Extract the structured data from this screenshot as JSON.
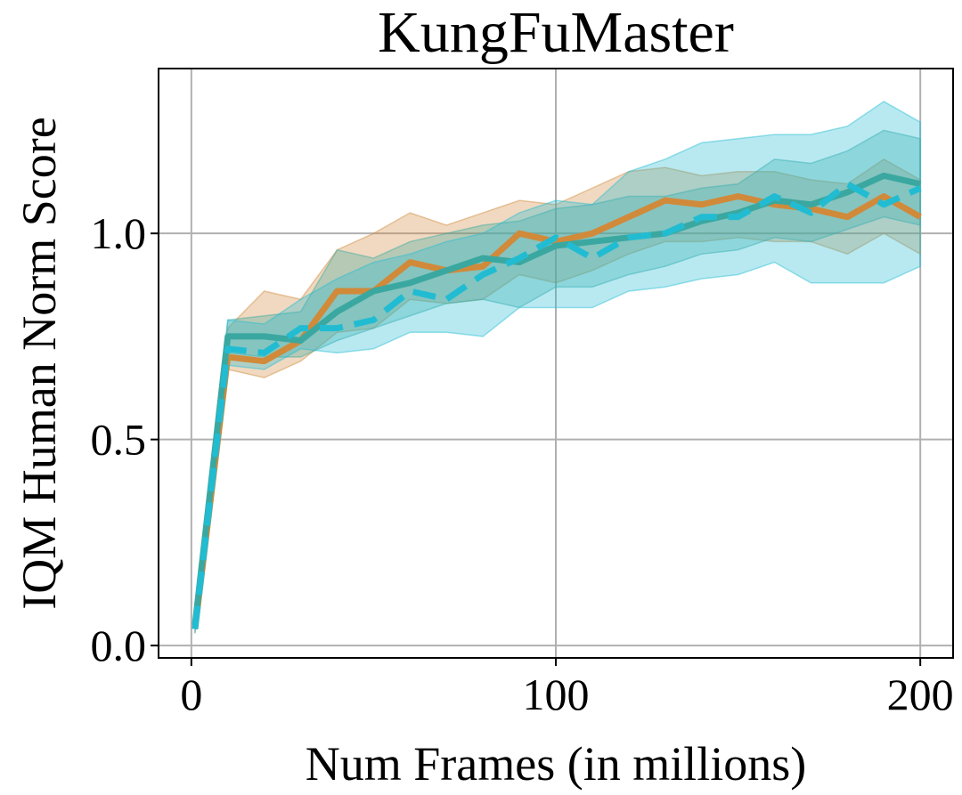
{
  "chart_data": {
    "type": "line",
    "title": "KungFuMaster",
    "xlabel": "Num Frames (in millions)",
    "ylabel": "IQM Human Norm Score",
    "xlim": [
      -9,
      209
    ],
    "ylim": [
      -0.03,
      1.4
    ],
    "xticks": [
      0,
      100,
      200
    ],
    "xtick_labels": [
      "0",
      "100",
      "200"
    ],
    "yticks": [
      0.0,
      0.5,
      1.0
    ],
    "ytick_labels": [
      "0.0",
      "0.5",
      "1.0"
    ],
    "grid": true,
    "legend": "none",
    "x": [
      1,
      10,
      20,
      30,
      40,
      50,
      60,
      70,
      80,
      90,
      100,
      110,
      120,
      130,
      140,
      150,
      160,
      170,
      180,
      190,
      200
    ],
    "series": [
      {
        "color": "#d08a3a",
        "line_style": "solid",
        "values": [
          0.04,
          0.7,
          0.69,
          0.74,
          0.86,
          0.86,
          0.93,
          0.91,
          0.92,
          1.0,
          0.98,
          1.0,
          1.04,
          1.08,
          1.07,
          1.09,
          1.07,
          1.06,
          1.04,
          1.09,
          1.04
        ],
        "lower": [
          0.03,
          0.67,
          0.65,
          0.69,
          0.76,
          0.77,
          0.84,
          0.83,
          0.84,
          0.9,
          0.88,
          0.91,
          0.95,
          0.98,
          0.98,
          0.99,
          0.98,
          0.98,
          0.95,
          1.0,
          0.95
        ],
        "upper": [
          0.05,
          0.77,
          0.86,
          0.84,
          0.96,
          1.0,
          1.05,
          1.02,
          1.05,
          1.08,
          1.07,
          1.11,
          1.15,
          1.16,
          1.14,
          1.15,
          1.15,
          1.13,
          1.12,
          1.18,
          1.13
        ]
      },
      {
        "color": "#3aa8a0",
        "line_style": "solid",
        "values": [
          0.05,
          0.75,
          0.75,
          0.74,
          0.81,
          0.86,
          0.88,
          0.91,
          0.94,
          0.93,
          0.97,
          0.98,
          0.99,
          1.0,
          1.03,
          1.05,
          1.08,
          1.07,
          1.1,
          1.14,
          1.12
        ],
        "lower": [
          0.04,
          0.71,
          0.7,
          0.7,
          0.74,
          0.77,
          0.8,
          0.83,
          0.84,
          0.82,
          0.87,
          0.87,
          0.9,
          0.92,
          0.95,
          0.96,
          0.99,
          0.98,
          1.01,
          1.04,
          1.02
        ],
        "upper": [
          0.06,
          0.79,
          0.8,
          0.81,
          0.96,
          0.94,
          0.98,
          1.0,
          1.02,
          1.03,
          1.06,
          1.07,
          1.09,
          1.09,
          1.11,
          1.12,
          1.18,
          1.17,
          1.2,
          1.25,
          1.23
        ]
      },
      {
        "color": "#22bcd2",
        "line_style": "dashed",
        "values": [
          0.04,
          0.72,
          0.71,
          0.77,
          0.77,
          0.79,
          0.86,
          0.84,
          0.9,
          0.94,
          0.99,
          0.94,
          0.99,
          1.0,
          1.04,
          1.04,
          1.09,
          1.05,
          1.12,
          1.07,
          1.11
        ],
        "lower": [
          0.03,
          0.68,
          0.67,
          0.72,
          0.71,
          0.72,
          0.76,
          0.76,
          0.75,
          0.82,
          0.82,
          0.82,
          0.86,
          0.87,
          0.89,
          0.9,
          0.93,
          0.88,
          0.88,
          0.88,
          0.92
        ],
        "upper": [
          0.05,
          0.79,
          0.78,
          0.84,
          0.89,
          0.93,
          0.95,
          0.98,
          1.0,
          1.05,
          1.08,
          1.07,
          1.15,
          1.18,
          1.22,
          1.23,
          1.24,
          1.24,
          1.26,
          1.32,
          1.27
        ]
      }
    ]
  }
}
